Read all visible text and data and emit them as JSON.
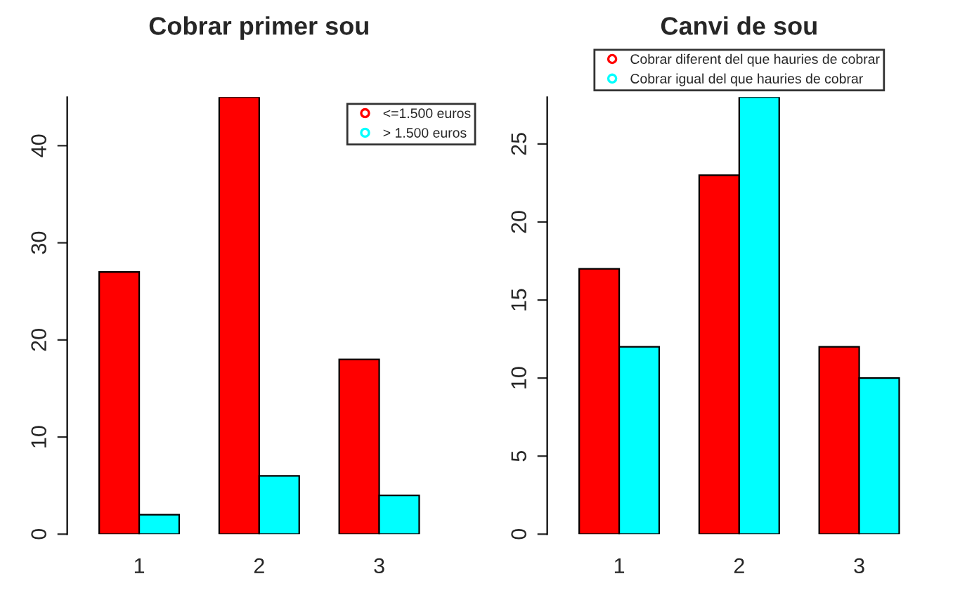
{
  "chart_data": [
    {
      "type": "bar",
      "title": "Cobrar primer sou",
      "categories": [
        "1",
        "2",
        "3"
      ],
      "series": [
        {
          "name": "<=1.500 euros",
          "color": "#ff0000",
          "values": [
            27,
            45,
            18
          ]
        },
        {
          "name": "> 1.500 euros",
          "color": "#00ffff",
          "values": [
            2,
            6,
            4
          ]
        }
      ],
      "ylim": [
        0,
        45
      ],
      "yticks": [
        0,
        10,
        20,
        30,
        40
      ],
      "grid": false,
      "legend": "top right",
      "marker": "circle"
    },
    {
      "type": "bar",
      "title": "Canvi de sou",
      "categories": [
        "1",
        "2",
        "3"
      ],
      "series": [
        {
          "name": "Cobrar diferent del que hauries de cobrar",
          "color": "#ff0000",
          "values": [
            17,
            23,
            12
          ]
        },
        {
          "name": "Cobrar igual del que hauries de cobrar",
          "color": "#00ffff",
          "values": [
            12,
            28,
            10
          ]
        }
      ],
      "ylim": [
        0,
        28
      ],
      "yticks": [
        0,
        5,
        10,
        15,
        20,
        25
      ],
      "grid": false,
      "legend": "top",
      "marker": "circle"
    }
  ]
}
